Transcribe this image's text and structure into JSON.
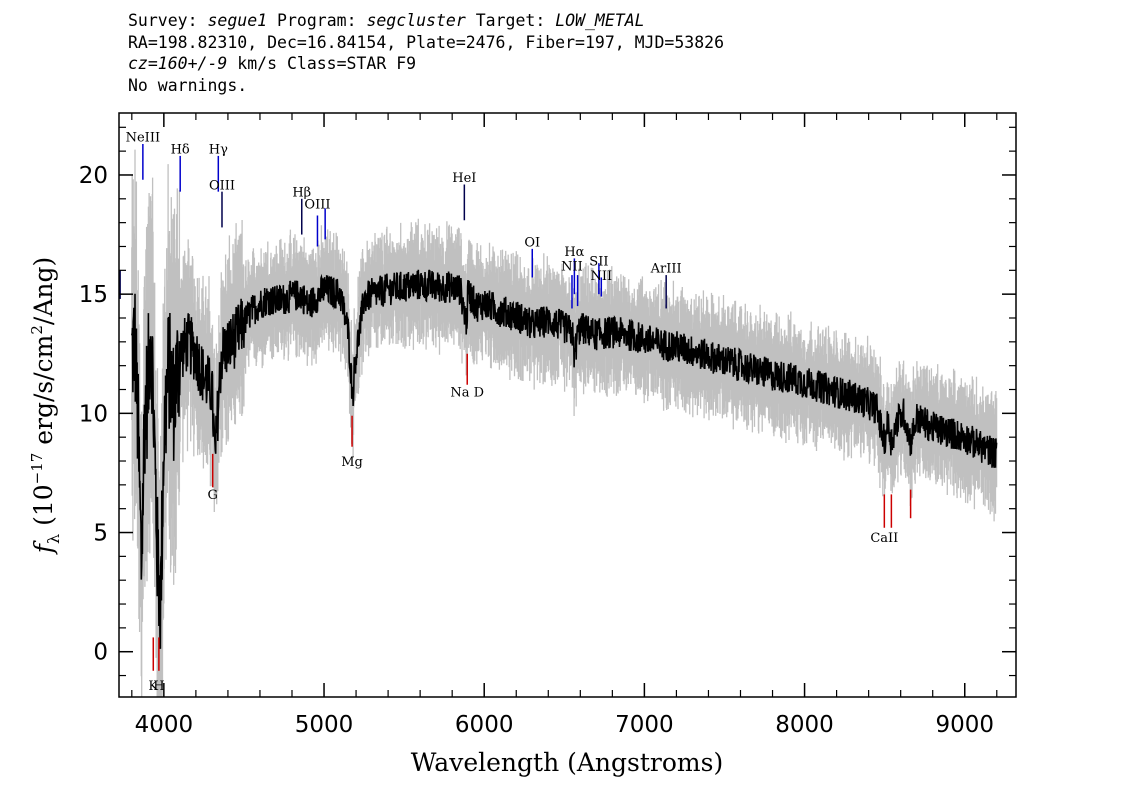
{
  "header": {
    "line1": [
      {
        "t": "Survey: ",
        "i": false
      },
      {
        "t": "segue1",
        "i": true
      },
      {
        "t": " Program: ",
        "i": false
      },
      {
        "t": "segcluster",
        "i": true
      },
      {
        "t": " Target: ",
        "i": false
      },
      {
        "t": "LOW_METAL",
        "i": true
      }
    ],
    "line2": [
      {
        "t": "RA=198.82310, Dec=16.84154, Plate=2476, Fiber=197, MJD=53826",
        "i": false
      }
    ],
    "line3": [
      {
        "t": "cz=160+/-9",
        "i": true
      },
      {
        "t": " km/s Class=STAR F9",
        "i": false
      }
    ],
    "line4": [
      {
        "t": "No warnings.",
        "i": false
      }
    ]
  },
  "chart_data": {
    "type": "line",
    "title": "",
    "xlabel": "Wavelength (Angstroms)",
    "ylabel": "f_λ (10^-17 erg/s/cm^2/Ang)",
    "ylabel_parts": {
      "f": "f",
      "sub": "λ",
      "pre": " (10",
      "sup1": "−17",
      "mid": " erg/s/cm",
      "sup2": "2",
      "post": "/Ang)"
    },
    "xlim": [
      3720,
      9320
    ],
    "ylim": [
      -1.9,
      22.6
    ],
    "xticks": [
      4000,
      5000,
      6000,
      7000,
      8000,
      9000
    ],
    "yticks": [
      0,
      5,
      10,
      15,
      20
    ],
    "grid": false,
    "colors": {
      "flux": "#000000",
      "error": "#c0c0c0",
      "emission": "#0000cc",
      "emission_dark": "#00004c",
      "absorption": "#cc0000"
    },
    "series": [
      {
        "role": "flux",
        "x": [
          3800,
          3820,
          3840,
          3860,
          3880,
          3900,
          3920,
          3940,
          3960,
          3980,
          4000,
          4030,
          4060,
          4100,
          4150,
          4200,
          4250,
          4300,
          4320,
          4340,
          4360,
          4400,
          4450,
          4500,
          4550,
          4600,
          4650,
          4700,
          4800,
          4860,
          4900,
          5000,
          5100,
          5150,
          5170,
          5180,
          5190,
          5250,
          5300,
          5400,
          5500,
          5600,
          5700,
          5800,
          5850,
          5890,
          5900,
          5950,
          6000,
          6100,
          6200,
          6300,
          6350,
          6400,
          6500,
          6550,
          6563,
          6580,
          6600,
          6700,
          6800,
          6900,
          7000,
          7100,
          7200,
          7300,
          7400,
          7500,
          7600,
          7700,
          7800,
          7900,
          8000,
          8100,
          8200,
          8300,
          8400,
          8450,
          8498,
          8520,
          8542,
          8580,
          8620,
          8662,
          8700,
          8800,
          8900,
          9000,
          9100,
          9200
        ],
        "y": [
          12.5,
          13.0,
          9.0,
          3.5,
          10.0,
          11.0,
          14.0,
          9.0,
          4.0,
          2.0,
          9.0,
          12.0,
          10.5,
          12.5,
          13.0,
          12.5,
          11.5,
          11.0,
          8.0,
          10.5,
          12.5,
          12.8,
          13.2,
          13.8,
          14.3,
          14.6,
          14.8,
          14.7,
          14.9,
          15.0,
          14.5,
          15.2,
          15.0,
          13.5,
          11.5,
          10.7,
          12.0,
          14.8,
          15.0,
          15.2,
          15.3,
          15.4,
          15.3,
          15.3,
          15.2,
          13.8,
          15.1,
          14.5,
          14.6,
          14.3,
          14.1,
          13.7,
          13.8,
          13.9,
          13.6,
          13.4,
          12.3,
          13.2,
          13.6,
          13.3,
          13.4,
          13.3,
          13.1,
          12.9,
          12.8,
          12.6,
          12.4,
          12.2,
          12.0,
          11.8,
          11.6,
          11.5,
          11.3,
          11.1,
          10.9,
          10.7,
          10.4,
          10.2,
          8.8,
          9.6,
          8.8,
          9.7,
          10.0,
          8.8,
          9.8,
          9.4,
          9.2,
          9.0,
          8.6,
          8.3
        ],
        "noise": 0.8
      }
    ],
    "lines": [
      {
        "label": "NeIII",
        "wave": 3869,
        "y_top": 21.3,
        "y_bot": 19.8,
        "label_y": 21.4,
        "color": "emission"
      },
      {
        "label": "Hδ",
        "wave": 4102,
        "y_top": 20.8,
        "y_bot": 19.3,
        "label_y": 20.9,
        "color": "emission"
      },
      {
        "label": "Hγ",
        "wave": 4340,
        "y_top": 20.8,
        "y_bot": 19.3,
        "label_y": 20.9,
        "color": "emission"
      },
      {
        "label": "OIII",
        "wave": 4363,
        "y_top": 19.3,
        "y_bot": 17.8,
        "label_y": 19.4,
        "color": "emission_dark"
      },
      {
        "label": "Hβ",
        "wave": 4861,
        "y_top": 19.0,
        "y_bot": 17.5,
        "label_y": 19.1,
        "color": "emission_dark"
      },
      {
        "label": "OIII",
        "wave": 4959,
        "y_top": 18.3,
        "y_bot": 17.0,
        "label_y": 18.6,
        "color": "emission"
      },
      {
        "label": "",
        "wave": 5007,
        "y_top": 18.6,
        "y_bot": 17.3,
        "label_y": 18.6,
        "color": "emission"
      },
      {
        "label": "HeI",
        "wave": 5876,
        "y_top": 19.6,
        "y_bot": 18.1,
        "label_y": 19.7,
        "color": "emission_dark"
      },
      {
        "label": "OI",
        "wave": 6300,
        "y_top": 16.9,
        "y_bot": 15.7,
        "label_y": 17.0,
        "color": "emission"
      },
      {
        "label": "NII",
        "wave": 6548,
        "y_top": 15.8,
        "y_bot": 14.4,
        "label_y": 16.0,
        "color": "emission"
      },
      {
        "label": "Hα",
        "wave": 6563,
        "y_top": 16.5,
        "y_bot": 15.0,
        "label_y": 16.6,
        "color": "emission"
      },
      {
        "label": "",
        "wave": 6583,
        "y_top": 15.8,
        "y_bot": 14.5,
        "label_y": 15.8,
        "color": "emission"
      },
      {
        "label": "SII",
        "wave": 6716,
        "y_top": 16.3,
        "y_bot": 15.0,
        "label_y": 16.2,
        "color": "emission"
      },
      {
        "label": "NII",
        "wave": 6731,
        "y_top": 15.7,
        "y_bot": 14.9,
        "label_y": 15.6,
        "color": "emission"
      },
      {
        "label": "ArIII",
        "wave": 7136,
        "y_top": 15.8,
        "y_bot": 14.4,
        "label_y": 15.9,
        "color": "emission_dark"
      },
      {
        "label": "",
        "wave": 3727,
        "y_top": 16.0,
        "y_bot": 14.8,
        "label_y": 16.0,
        "color": "emission_dark"
      },
      {
        "label": "K",
        "wave": 3934,
        "y_top": 0.6,
        "y_bot": -0.8,
        "label_y": -1.6,
        "color": "absorption"
      },
      {
        "label": "H",
        "wave": 3969,
        "y_top": 0.6,
        "y_bot": -0.8,
        "label_y": -1.6,
        "color": "absorption"
      },
      {
        "label": "G",
        "wave": 4305,
        "y_top": 8.3,
        "y_bot": 6.9,
        "label_y": 6.4,
        "color": "absorption"
      },
      {
        "label": "Mg",
        "wave": 5175,
        "y_top": 9.9,
        "y_bot": 8.6,
        "label_y": 7.8,
        "color": "absorption"
      },
      {
        "label": "Na D",
        "wave": 5894,
        "y_top": 12.5,
        "y_bot": 11.2,
        "label_y": 10.7,
        "color": "absorption"
      },
      {
        "label": "CaII",
        "wave": 8498,
        "y_top": 6.6,
        "y_bot": 5.2,
        "label_y": 4.6,
        "color": "absorption"
      },
      {
        "label": "",
        "wave": 8542,
        "y_top": 6.6,
        "y_bot": 5.2,
        "label_y": 4.6,
        "color": "absorption"
      },
      {
        "label": "",
        "wave": 8662,
        "y_top": 6.8,
        "y_bot": 5.6,
        "label_y": 4.6,
        "color": "absorption"
      }
    ]
  }
}
